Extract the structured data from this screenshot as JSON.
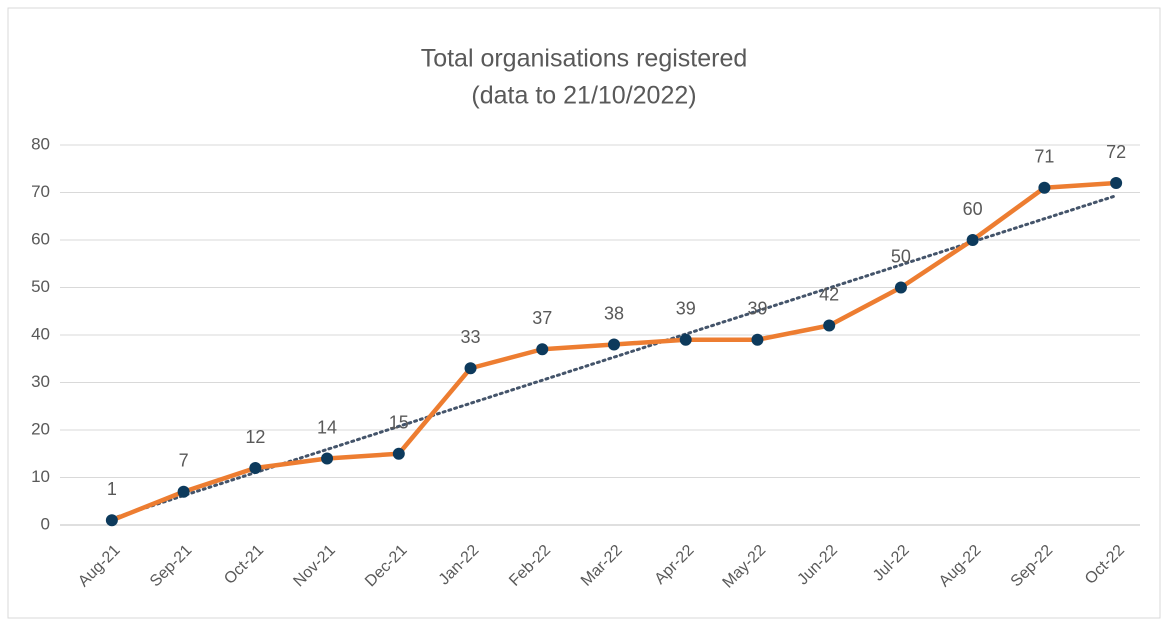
{
  "chart_data": {
    "type": "line",
    "title": "Total organisations registered",
    "subtitle": "(data to 21/10/2022)",
    "categories": [
      "Aug-21",
      "Sep-21",
      "Oct-21",
      "Nov-21",
      "Dec-21",
      "Jan-22",
      "Feb-22",
      "Mar-22",
      "Apr-22",
      "May-22",
      "Jun-22",
      "Jul-22",
      "Aug-22",
      "Sep-22",
      "Oct-22"
    ],
    "series": [
      {
        "name": "Total organisations registered",
        "color": "#ed7d31",
        "marker_color": "#0d3a5c",
        "values": [
          1,
          7,
          12,
          14,
          15,
          33,
          37,
          38,
          39,
          39,
          42,
          50,
          60,
          71,
          72
        ]
      }
    ],
    "trendline": "linear",
    "trendline_color": "#44546a",
    "ylim": [
      0,
      80
    ],
    "yticks": [
      0,
      10,
      20,
      30,
      40,
      50,
      60,
      70,
      80
    ],
    "grid": true,
    "data_labels": true
  }
}
